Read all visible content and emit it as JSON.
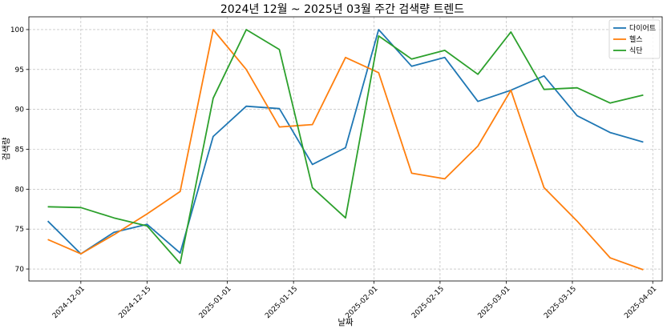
{
  "chart_data": {
    "type": "line",
    "title": "2024년 12월 ~ 2025년 03월 주간 검색량 트렌드",
    "xlabel": "날짜",
    "ylabel": "검색량",
    "x": [
      "2024-11-24",
      "2024-12-01",
      "2024-12-08",
      "2024-12-15",
      "2024-12-22",
      "2024-12-29",
      "2025-01-05",
      "2025-01-12",
      "2025-01-19",
      "2025-01-26",
      "2025-02-02",
      "2025-02-09",
      "2025-02-16",
      "2025-02-23",
      "2025-03-02",
      "2025-03-09",
      "2025-03-16",
      "2025-03-23",
      "2025-03-30"
    ],
    "xlim": [
      "2024-11-20",
      "2025-04-03"
    ],
    "xticks": [
      "2024-12-01",
      "2024-12-15",
      "2025-01-01",
      "2025-01-15",
      "2025-02-01",
      "2025-02-15",
      "2025-03-01",
      "2025-03-15",
      "2025-04-01"
    ],
    "ylim": [
      68.5,
      101.6
    ],
    "yticks": [
      70,
      75,
      80,
      85,
      90,
      95,
      100
    ],
    "grid": true,
    "legend_position": "top-right",
    "series": [
      {
        "name": "다이어트",
        "color": "#1f77b4",
        "values": [
          76.0,
          71.9,
          74.6,
          75.6,
          72.0,
          86.6,
          90.4,
          90.1,
          83.1,
          85.2,
          100.0,
          95.4,
          96.5,
          91.0,
          92.4,
          94.2,
          89.2,
          87.1,
          85.9
        ]
      },
      {
        "name": "헬스",
        "color": "#ff7f0e",
        "values": [
          73.7,
          71.9,
          74.3,
          76.9,
          79.7,
          100.0,
          95.0,
          87.8,
          88.1,
          96.5,
          94.6,
          82.0,
          81.3,
          85.4,
          92.4,
          80.2,
          76.0,
          71.4,
          69.9
        ]
      },
      {
        "name": "식단",
        "color": "#2ca02c",
        "values": [
          77.8,
          77.7,
          76.4,
          75.4,
          70.7,
          91.4,
          100.0,
          97.5,
          80.2,
          76.4,
          99.2,
          96.3,
          97.4,
          94.4,
          99.7,
          92.5,
          92.7,
          90.8,
          91.8
        ]
      }
    ]
  }
}
